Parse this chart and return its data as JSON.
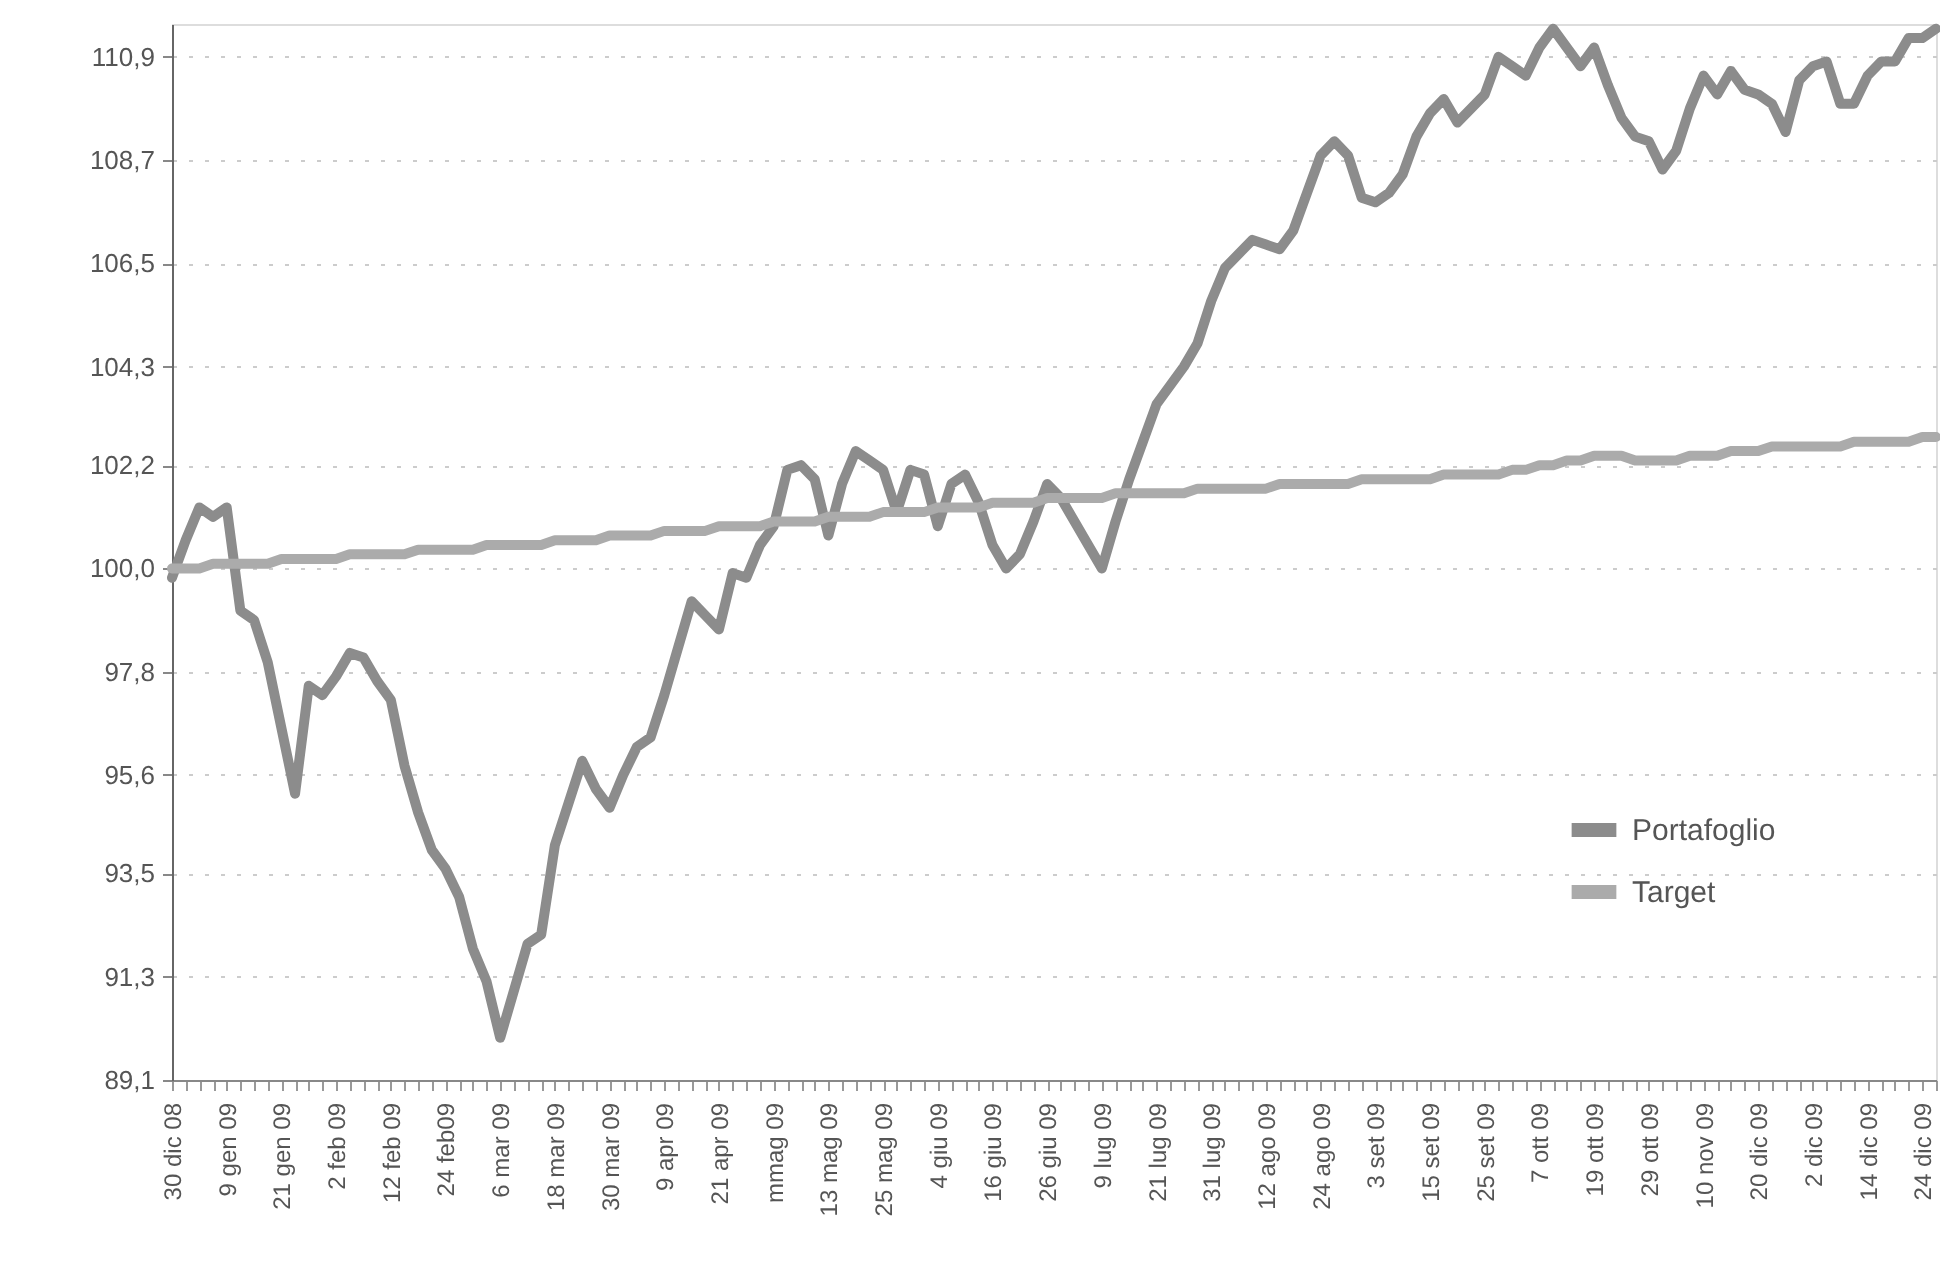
{
  "chart_data": {
    "type": "line",
    "categories": [
      "30 dic 08",
      null,
      null,
      null,
      "9 gen 09",
      null,
      null,
      null,
      "21 gen 09",
      null,
      null,
      null,
      "2 feb 09",
      null,
      null,
      null,
      "12 feb 09",
      null,
      null,
      null,
      "24 feb09",
      null,
      null,
      null,
      "6 mar 09",
      null,
      null,
      null,
      "18 mar 09",
      null,
      null,
      null,
      "30 mar 09",
      null,
      null,
      null,
      "9 apr 09",
      null,
      null,
      null,
      "21 apr 09",
      null,
      null,
      null,
      "mmag 09",
      null,
      null,
      null,
      "13 mag 09",
      null,
      null,
      null,
      "25 mag 09",
      null,
      null,
      null,
      "4 giu 09",
      null,
      null,
      null,
      "16 giu 09",
      null,
      null,
      null,
      "26 giu 09",
      null,
      null,
      null,
      "9 lug 09",
      null,
      null,
      null,
      "21 lug 09",
      null,
      null,
      null,
      "31 lug 09",
      null,
      null,
      null,
      "12 ago 09",
      null,
      null,
      null,
      "24 ago 09",
      null,
      null,
      null,
      "3 set 09",
      null,
      null,
      null,
      "15 set 09",
      null,
      null,
      null,
      "25 set 09",
      null,
      null,
      null,
      "7 ott 09",
      null,
      null,
      null,
      "19 ott 09",
      null,
      null,
      null,
      "29 ott 09",
      null,
      null,
      null,
      "10 nov 09",
      null,
      null,
      null,
      "20 dic 09",
      null,
      null,
      null,
      "2 dic 09",
      null,
      null,
      null,
      "14 dic 09",
      null,
      null,
      null,
      "24 dic 09",
      null
    ],
    "series": [
      {
        "name": "Portafoglio",
        "color": "#8c8c8c",
        "values": [
          99.8,
          100.6,
          101.3,
          101.1,
          101.3,
          99.1,
          98.9,
          98.0,
          96.6,
          95.2,
          97.5,
          97.3,
          97.7,
          98.2,
          98.1,
          97.6,
          97.2,
          95.8,
          94.8,
          94.0,
          93.6,
          93.0,
          91.9,
          91.2,
          90.0,
          91.0,
          92.0,
          92.2,
          94.1,
          95.0,
          95.9,
          95.3,
          94.9,
          95.6,
          96.2,
          96.4,
          97.3,
          98.3,
          99.3,
          99.0,
          98.7,
          99.9,
          99.8,
          100.5,
          100.9,
          102.1,
          102.2,
          101.9,
          100.7,
          101.8,
          102.5,
          102.3,
          102.1,
          101.2,
          102.1,
          102.0,
          100.9,
          101.8,
          102.0,
          101.4,
          100.5,
          100.0,
          100.3,
          101.0,
          101.8,
          101.5,
          101.0,
          100.5,
          100.0,
          101.0,
          101.9,
          102.7,
          103.5,
          103.9,
          104.3,
          104.8,
          105.7,
          106.4,
          106.7,
          107.0,
          106.9,
          106.8,
          107.2,
          108.0,
          108.8,
          109.1,
          108.8,
          107.9,
          107.8,
          108.0,
          108.4,
          109.2,
          109.7,
          110.0,
          109.5,
          109.8,
          110.1,
          110.9,
          110.7,
          110.5,
          111.1,
          111.5,
          111.1,
          110.7,
          111.1,
          110.3,
          109.6,
          109.2,
          109.1,
          108.5,
          108.9,
          109.8,
          110.5,
          110.1,
          110.6,
          110.2,
          110.1,
          109.9,
          109.3,
          110.4,
          110.7,
          110.8,
          109.9,
          109.9,
          110.5,
          110.8,
          110.8,
          111.3,
          111.3,
          111.5
        ]
      },
      {
        "name": "Target",
        "color": "#ababab",
        "values": [
          100.0,
          100.0,
          100.0,
          100.1,
          100.1,
          100.1,
          100.1,
          100.1,
          100.2,
          100.2,
          100.2,
          100.2,
          100.2,
          100.3,
          100.3,
          100.3,
          100.3,
          100.3,
          100.4,
          100.4,
          100.4,
          100.4,
          100.4,
          100.5,
          100.5,
          100.5,
          100.5,
          100.5,
          100.6,
          100.6,
          100.6,
          100.6,
          100.7,
          100.7,
          100.7,
          100.7,
          100.8,
          100.8,
          100.8,
          100.8,
          100.9,
          100.9,
          100.9,
          100.9,
          101.0,
          101.0,
          101.0,
          101.0,
          101.1,
          101.1,
          101.1,
          101.1,
          101.2,
          101.2,
          101.2,
          101.2,
          101.3,
          101.3,
          101.3,
          101.3,
          101.4,
          101.4,
          101.4,
          101.4,
          101.5,
          101.5,
          101.5,
          101.5,
          101.5,
          101.6,
          101.6,
          101.6,
          101.6,
          101.6,
          101.6,
          101.7,
          101.7,
          101.7,
          101.7,
          101.7,
          101.7,
          101.8,
          101.8,
          101.8,
          101.8,
          101.8,
          101.8,
          101.9,
          101.9,
          101.9,
          101.9,
          101.9,
          101.9,
          102.0,
          102.0,
          102.0,
          102.0,
          102.0,
          102.1,
          102.1,
          102.2,
          102.2,
          102.3,
          102.3,
          102.4,
          102.4,
          102.4,
          102.3,
          102.3,
          102.3,
          102.3,
          102.4,
          102.4,
          102.4,
          102.5,
          102.5,
          102.5,
          102.6,
          102.6,
          102.6,
          102.6,
          102.6,
          102.6,
          102.7,
          102.7,
          102.7,
          102.7,
          102.7,
          102.8,
          102.8
        ]
      }
    ],
    "ylim": [
      89.1,
      111.6
    ],
    "yticks": [
      {
        "value": 89.1,
        "label": "89,1"
      },
      {
        "value": 91.3,
        "label": "91,3"
      },
      {
        "value": 93.5,
        "label": "93,5"
      },
      {
        "value": 95.6,
        "label": "95,6"
      },
      {
        "value": 97.8,
        "label": "97,8"
      },
      {
        "value": 100.0,
        "label": "100,0"
      },
      {
        "value": 102.2,
        "label": "102,2"
      },
      {
        "value": 104.3,
        "label": "104,3"
      },
      {
        "value": 106.5,
        "label": "106,5"
      },
      {
        "value": 108.7,
        "label": "108,7"
      },
      {
        "value": 110.9,
        "label": "110,9"
      }
    ],
    "grid": "y",
    "legend": "bottom right",
    "line_style": "solid"
  }
}
